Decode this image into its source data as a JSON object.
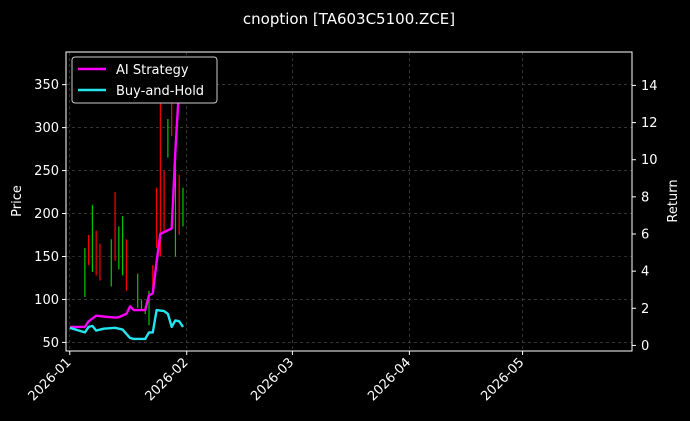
{
  "chart_data": {
    "type": "line",
    "title": "cnoption [TA603C5100.ZCE]",
    "ylabel": "Price",
    "y2label": "Return",
    "x_range": [
      "2025-12-31",
      "2026-05-30"
    ],
    "x_ticks": [
      "2026-01",
      "2026-02",
      "2026-03",
      "2026-04",
      "2026-05"
    ],
    "x_tick_dates": [
      "2026-01-01",
      "2026-02-01",
      "2026-03-01",
      "2026-04-01",
      "2026-05-01"
    ],
    "ylim": [
      40,
      388
    ],
    "y_ticks": [
      50,
      100,
      150,
      200,
      250,
      300,
      350
    ],
    "y2lim": [
      -0.3,
      15.8
    ],
    "y2_ticks": [
      0,
      2,
      4,
      6,
      8,
      10,
      12,
      14
    ],
    "grid": true,
    "legend_position": "top-left",
    "legend": [
      "AI Strategy",
      "Buy-and-Hold"
    ],
    "colors": {
      "background": "#000000",
      "ai_strategy": "#ff00ff",
      "buy_and_hold": "#22e5f0",
      "candle_up": "#00c800",
      "candle_down": "#ff0000",
      "grid": "#555555",
      "axes": "#ffffff"
    },
    "candles": [
      {
        "date": "2026-01-05",
        "high": 160,
        "low": 103,
        "dir": "up"
      },
      {
        "date": "2026-01-06",
        "high": 175,
        "low": 140,
        "dir": "down"
      },
      {
        "date": "2026-01-07",
        "high": 210,
        "low": 132,
        "dir": "up"
      },
      {
        "date": "2026-01-08",
        "high": 180,
        "low": 128,
        "dir": "down"
      },
      {
        "date": "2026-01-09",
        "high": 165,
        "low": 122,
        "dir": "down"
      },
      {
        "date": "2026-01-12",
        "high": 170,
        "low": 115,
        "dir": "up"
      },
      {
        "date": "2026-01-13",
        "high": 225,
        "low": 145,
        "dir": "down"
      },
      {
        "date": "2026-01-14",
        "high": 185,
        "low": 135,
        "dir": "up"
      },
      {
        "date": "2026-01-15",
        "high": 197,
        "low": 128,
        "dir": "up"
      },
      {
        "date": "2026-01-16",
        "high": 170,
        "low": 110,
        "dir": "down"
      },
      {
        "date": "2026-01-19",
        "high": 130,
        "low": 90,
        "dir": "up"
      },
      {
        "date": "2026-01-20",
        "high": 100,
        "low": 88,
        "dir": "up"
      },
      {
        "date": "2026-01-21",
        "high": 92,
        "low": 83,
        "dir": "up"
      },
      {
        "date": "2026-01-22",
        "high": 110,
        "low": 70,
        "dir": "up"
      },
      {
        "date": "2026-01-23",
        "high": 140,
        "low": 108,
        "dir": "down"
      },
      {
        "date": "2026-01-24",
        "high": 230,
        "low": 160,
        "dir": "down"
      },
      {
        "date": "2026-01-25",
        "high": 350,
        "low": 150,
        "dir": "down"
      },
      {
        "date": "2026-01-26",
        "high": 250,
        "low": 180,
        "dir": "down"
      },
      {
        "date": "2026-01-27",
        "high": 310,
        "low": 265,
        "dir": "up"
      },
      {
        "date": "2026-01-28",
        "high": 340,
        "low": 290,
        "dir": "down"
      },
      {
        "date": "2026-01-29",
        "high": 260,
        "low": 150,
        "dir": "up"
      },
      {
        "date": "2026-01-30",
        "high": 245,
        "low": 175,
        "dir": "down"
      },
      {
        "date": "2026-01-31",
        "high": 230,
        "low": 185,
        "dir": "up"
      }
    ],
    "series": [
      {
        "name": "AI Strategy",
        "axis": "right",
        "points": [
          [
            "2026-01-01",
            1.0
          ],
          [
            "2026-01-05",
            1.0
          ],
          [
            "2026-01-06",
            1.3
          ],
          [
            "2026-01-08",
            1.6
          ],
          [
            "2026-01-10",
            1.55
          ],
          [
            "2026-01-13",
            1.5
          ],
          [
            "2026-01-14",
            1.52
          ],
          [
            "2026-01-16",
            1.7
          ],
          [
            "2026-01-17",
            2.1
          ],
          [
            "2026-01-18",
            1.9
          ],
          [
            "2026-01-21",
            1.9
          ],
          [
            "2026-01-22",
            2.7
          ],
          [
            "2026-01-23",
            2.8
          ],
          [
            "2026-01-24",
            4.5
          ],
          [
            "2026-01-25",
            6.0
          ],
          [
            "2026-01-26",
            6.1
          ],
          [
            "2026-01-27",
            6.2
          ],
          [
            "2026-01-28",
            6.3
          ],
          [
            "2026-01-29",
            10.5
          ],
          [
            "2026-01-30",
            14.0
          ],
          [
            "2026-01-31",
            14.5
          ]
        ]
      },
      {
        "name": "Buy-and-Hold",
        "axis": "right",
        "points": [
          [
            "2026-01-01",
            0.95
          ],
          [
            "2026-01-05",
            0.7
          ],
          [
            "2026-01-06",
            1.0
          ],
          [
            "2026-01-07",
            1.05
          ],
          [
            "2026-01-08",
            0.8
          ],
          [
            "2026-01-10",
            0.9
          ],
          [
            "2026-01-13",
            0.95
          ],
          [
            "2026-01-15",
            0.85
          ],
          [
            "2026-01-17",
            0.4
          ],
          [
            "2026-01-18",
            0.35
          ],
          [
            "2026-01-21",
            0.35
          ],
          [
            "2026-01-22",
            0.7
          ],
          [
            "2026-01-23",
            0.7
          ],
          [
            "2026-01-24",
            1.9
          ],
          [
            "2026-01-26",
            1.85
          ],
          [
            "2026-01-27",
            1.7
          ],
          [
            "2026-01-28",
            1.0
          ],
          [
            "2026-01-29",
            1.35
          ],
          [
            "2026-01-30",
            1.3
          ],
          [
            "2026-01-31",
            1.0
          ]
        ]
      }
    ]
  }
}
